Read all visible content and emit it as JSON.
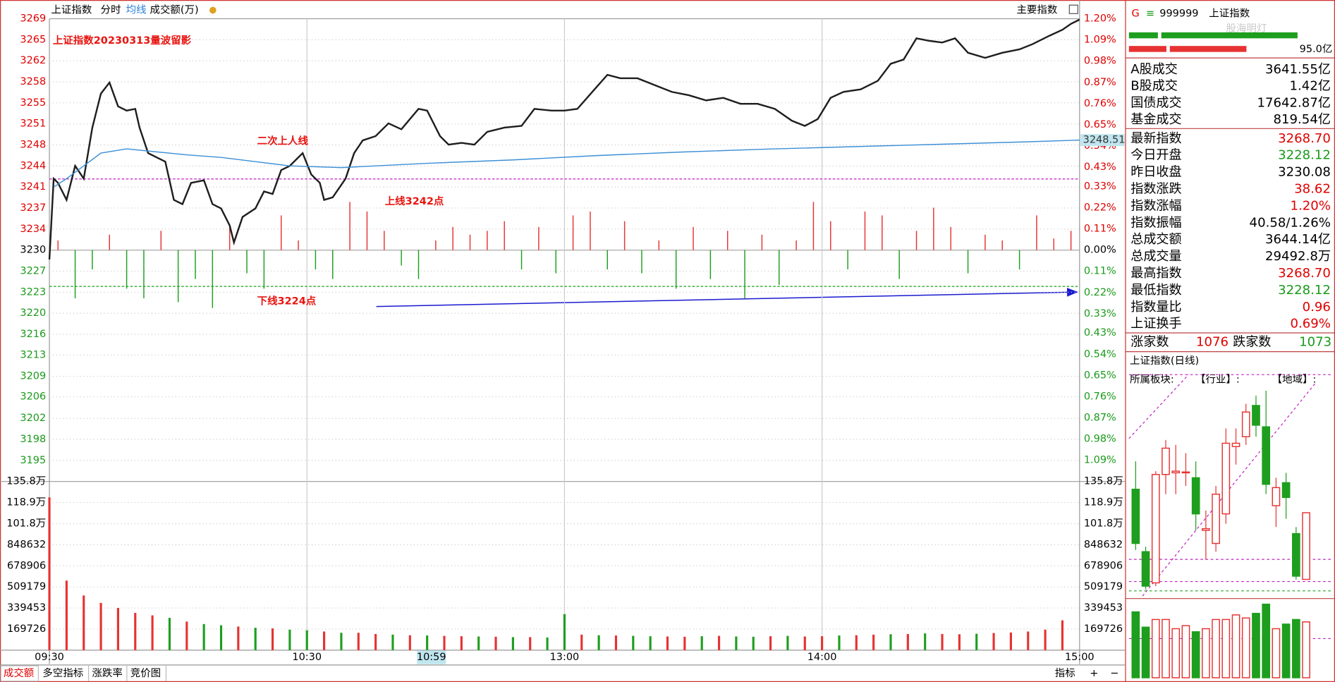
{
  "toolbar": {
    "items": [
      "上证指数",
      "分时",
      "均线",
      "成交额(万)"
    ],
    "main_index": "主要指数"
  },
  "chart_data": [
    {
      "type": "line",
      "xlim": [
        0,
        240
      ],
      "xticks": [
        {
          "value": 0,
          "label": "09:30"
        },
        {
          "value": 60,
          "label": "10:30"
        },
        {
          "value": 120,
          "label": "13:00"
        },
        {
          "value": 180,
          "label": "14:00"
        },
        {
          "value": 240,
          "label": "15:00"
        }
      ],
      "ylim": [
        3191.32,
        3268.84
      ],
      "yticks": [
        {
          "value": 3268.84,
          "label": "3269"
        },
        {
          "value": 3265.32,
          "label": "3265"
        },
        {
          "value": 3261.79,
          "label": "3262"
        },
        {
          "value": 3258.27,
          "label": "3258"
        },
        {
          "value": 3254.75,
          "label": "3255"
        },
        {
          "value": 3251.22,
          "label": "3251"
        },
        {
          "value": 3247.7,
          "label": "3248"
        },
        {
          "value": 3244.17,
          "label": "3244"
        },
        {
          "value": 3240.65,
          "label": "3241"
        },
        {
          "value": 3237.13,
          "label": "3237"
        },
        {
          "value": 3233.6,
          "label": "3234"
        },
        {
          "value": 3230.08,
          "label": "3230"
        },
        {
          "value": 3226.56,
          "label": "3227"
        },
        {
          "value": 3223.03,
          "label": "3223"
        },
        {
          "value": 3219.51,
          "label": "3220"
        },
        {
          "value": 3215.98,
          "label": "3216"
        },
        {
          "value": 3212.5,
          "label": "3213"
        },
        {
          "value": 3208.94,
          "label": "3209"
        },
        {
          "value": 3205.5,
          "label": "3206"
        },
        {
          "value": 3201.89,
          "label": "3202"
        },
        {
          "value": 3198.37,
          "label": "3198"
        },
        {
          "value": 3194.84,
          "label": "3195"
        }
      ],
      "y2lim": [
        -1.2,
        1.2
      ],
      "y2ticks": [
        {
          "value": 1.2,
          "label": "1.20%"
        },
        {
          "value": 1.09,
          "label": "1.09%"
        },
        {
          "value": 0.98,
          "label": "0.98%"
        },
        {
          "value": 0.87,
          "label": "0.87%"
        },
        {
          "value": 0.76,
          "label": "0.76%"
        },
        {
          "value": 0.65,
          "label": "0.65%"
        },
        {
          "value": 0.54,
          "label": "0.54%"
        },
        {
          "value": 0.43,
          "label": "0.43%"
        },
        {
          "value": 0.33,
          "label": "0.33%"
        },
        {
          "value": 0.22,
          "label": "0.22%"
        },
        {
          "value": 0.11,
          "label": "0.11%"
        },
        {
          "value": 0,
          "label": "0.00%"
        },
        {
          "value": -0.11,
          "label": "0.11%"
        },
        {
          "value": -0.22,
          "label": "0.22%"
        },
        {
          "value": -0.33,
          "label": "0.33%"
        },
        {
          "value": -0.43,
          "label": "0.43%"
        },
        {
          "value": -0.54,
          "label": "0.54%"
        },
        {
          "value": -0.65,
          "label": "0.65%"
        },
        {
          "value": -0.76,
          "label": "0.76%"
        },
        {
          "value": -0.87,
          "label": "0.87%"
        },
        {
          "value": -0.98,
          "label": "0.98%"
        },
        {
          "value": -1.09,
          "label": "1.09%"
        }
      ],
      "grid": true,
      "series": [
        {
          "color": "#1e1e1e",
          "x": [
            0,
            1,
            2,
            4,
            6,
            8,
            10,
            12,
            14,
            16,
            18,
            20,
            21,
            23,
            25,
            27,
            29,
            31,
            33,
            36,
            38,
            40,
            42,
            43,
            45,
            48,
            50,
            52,
            54,
            56,
            59,
            61,
            63,
            64,
            66,
            69,
            71,
            73,
            76,
            79,
            82,
            86,
            88,
            91,
            93,
            96,
            99,
            102,
            106,
            110,
            113,
            117,
            120,
            123,
            127,
            130,
            133,
            137,
            141,
            145,
            149,
            153,
            157,
            161,
            165,
            169,
            173,
            176,
            179,
            182,
            185,
            189,
            193,
            196,
            199,
            202,
            205,
            208,
            211,
            214,
            218,
            222,
            226,
            229,
            233,
            236,
            238,
            240
          ],
          "values": [
            3228.51,
            3242.05,
            3241.34,
            3238.49,
            3244.19,
            3242.05,
            3250.6,
            3256.3,
            3258.15,
            3254.16,
            3253.45,
            3253.74,
            3250.6,
            3246.33,
            3245.61,
            3244.9,
            3238.49,
            3237.78,
            3241.34,
            3241.77,
            3237.78,
            3237.06,
            3234.21,
            3231.36,
            3235.64,
            3237.06,
            3239.91,
            3239.49,
            3243.48,
            3244.19,
            3246.33,
            3242.76,
            3241.34,
            3238.49,
            3238.92,
            3242.05,
            3246.33,
            3248.46,
            3249.18,
            3251.31,
            3250.32,
            3253.74,
            3253.45,
            3249.18,
            3247.75,
            3248.04,
            3247.75,
            3249.89,
            3250.6,
            3250.89,
            3253.74,
            3253.45,
            3253.45,
            3253.74,
            3257.01,
            3259.44,
            3258.87,
            3258.87,
            3257.72,
            3256.59,
            3256.02,
            3255.16,
            3255.59,
            3254.59,
            3254.59,
            3253.74,
            3251.74,
            3250.89,
            3252.03,
            3255.59,
            3256.59,
            3257.01,
            3258.44,
            3261.29,
            3262.0,
            3265.56,
            3265.14,
            3264.85,
            3265.56,
            3263.14,
            3262.29,
            3263.14,
            3263.71,
            3264.57,
            3266.0,
            3266.99,
            3267.99,
            3268.7
          ]
        },
        {
          "color": "#3d8fd6",
          "x": [
            1,
            4,
            8,
            12,
            18,
            24,
            32,
            40,
            48,
            56,
            68,
            88,
            108,
            127,
            147,
            167,
            187,
            207,
            227,
            240
          ],
          "values": [
            3240.63,
            3242.05,
            3244.19,
            3246.33,
            3247.04,
            3246.61,
            3246.04,
            3245.61,
            3244.9,
            3244.19,
            3243.9,
            3244.62,
            3245.19,
            3245.9,
            3246.5,
            3247.0,
            3247.4,
            3247.8,
            3248.2,
            3248.51
          ]
        }
      ],
      "bars": {
        "up_color": "#e63232",
        "down_color": "#1e9e1e",
        "x": [
          2,
          6,
          10,
          14,
          18,
          22,
          26,
          30,
          34,
          38,
          42,
          46,
          50,
          54,
          58,
          62,
          66,
          70,
          74,
          78,
          82,
          86,
          90,
          94,
          98,
          102,
          106,
          110,
          114,
          118,
          122,
          126,
          130,
          134,
          138,
          142,
          146,
          150,
          154,
          158,
          162,
          166,
          170,
          174,
          178,
          182,
          186,
          190,
          194,
          198,
          202,
          206,
          210,
          214,
          218,
          222,
          226,
          230,
          234,
          238
        ],
        "values": [
          0.05,
          -0.25,
          -0.1,
          0.08,
          -0.2,
          -0.25,
          0.1,
          -0.27,
          -0.15,
          -0.3,
          0.12,
          -0.12,
          -0.2,
          0.18,
          0.05,
          -0.1,
          -0.15,
          0.25,
          0.2,
          0.1,
          -0.08,
          -0.15,
          0.05,
          0.12,
          0.08,
          0.1,
          0.15,
          -0.1,
          0.12,
          -0.12,
          0.18,
          0.2,
          -0.1,
          0.15,
          -0.12,
          0.05,
          -0.2,
          0.12,
          -0.15,
          0.1,
          -0.25,
          0.08,
          -0.18,
          0.05,
          0.25,
          0.15,
          -0.1,
          0.2,
          0.18,
          -0.15,
          0.1,
          0.22,
          0.12,
          -0.12,
          0.08,
          0.05,
          -0.1,
          0.18,
          0.06,
          0.1
        ]
      },
      "reference_lines": [
        {
          "value": 3242,
          "color": "#c020c0"
        },
        {
          "value": 3224,
          "color": "#1e9e1e"
        }
      ],
      "annotations": [
        {
          "text": "上证指数20230313量波留影",
          "color": "#e8140f"
        },
        {
          "text": "二次上人线",
          "color": "#e8140f"
        },
        {
          "text": "上线3242点",
          "color": "#e8140f"
        },
        {
          "text": "下线3224点",
          "color": "#e8140f"
        }
      ],
      "cursor": {
        "value": 89,
        "label": "10:59"
      }
    },
    {
      "type": "bar",
      "xlim": [
        0,
        240
      ],
      "ylim": [
        0,
        1357808
      ],
      "yticks": [
        {
          "value": 1357808,
          "label": "135.8万"
        },
        {
          "value": 1189000,
          "label": "118.9万"
        },
        {
          "value": 1018356,
          "label": "101.8万"
        },
        848632,
        678906,
        509179,
        339453,
        169726
      ],
      "x": [
        0,
        4,
        8,
        12,
        16,
        20,
        24,
        28,
        32,
        36,
        40,
        44,
        48,
        52,
        56,
        60,
        64,
        68,
        72,
        76,
        80,
        84,
        88,
        92,
        96,
        100,
        104,
        108,
        112,
        116,
        120,
        124,
        128,
        132,
        136,
        140,
        144,
        148,
        152,
        156,
        160,
        164,
        168,
        172,
        176,
        180,
        184,
        188,
        192,
        196,
        200,
        204,
        208,
        212,
        216,
        220,
        224,
        228,
        232,
        236
      ],
      "values": [
        1230000,
        560000,
        440000,
        380000,
        340000,
        300000,
        280000,
        260000,
        230000,
        210000,
        200000,
        190000,
        180000,
        175000,
        165000,
        160000,
        150000,
        140000,
        140000,
        130000,
        125000,
        120000,
        118000,
        115000,
        112000,
        110000,
        108000,
        105000,
        105000,
        102000,
        290000,
        125000,
        120000,
        118000,
        115000,
        112000,
        110000,
        108000,
        112000,
        115000,
        110000,
        108000,
        112000,
        115000,
        110000,
        112000,
        118000,
        120000,
        125000,
        128000,
        130000,
        135000,
        130000,
        128000,
        132000,
        138000,
        142000,
        150000,
        165000,
        240000
      ],
      "colors": [
        "#e63232",
        "#e63232",
        "#e63232",
        "#e63232",
        "#e63232",
        "#e63232",
        "#e63232",
        "#1e9e1e",
        "#e63232",
        "#1e9e1e",
        "#1e9e1e",
        "#e63232",
        "#1e9e1e",
        "#e63232",
        "#1e9e1e",
        "#1e9e1e",
        "#e63232",
        "#1e9e1e",
        "#e63232",
        "#e63232",
        "#1e9e1e",
        "#e63232",
        "#1e9e1e",
        "#e63232",
        "#e63232",
        "#1e9e1e",
        "#e63232",
        "#1e9e1e",
        "#e63232",
        "#1e9e1e",
        "#1e9e1e",
        "#e63232",
        "#1e9e1e",
        "#e63232",
        "#1e9e1e",
        "#1e9e1e",
        "#e63232",
        "#e63232",
        "#1e9e1e",
        "#e63232",
        "#1e9e1e",
        "#1e9e1e",
        "#e63232",
        "#1e9e1e",
        "#e63232",
        "#e63232",
        "#1e9e1e",
        "#e63232",
        "#e63232",
        "#1e9e1e",
        "#e63232",
        "#1e9e1e",
        "#e63232",
        "#e63232",
        "#1e9e1e",
        "#e63232",
        "#e63232",
        "#e63232",
        "#e63232",
        "#e63232"
      ]
    },
    {
      "type": "candlestick",
      "title": "上证指数(日线)",
      "sector_labels": [
        "所属板块:",
        "【行业】:",
        "【地域】:"
      ],
      "up_color": "#e63232",
      "down_color": "#1e9e1e",
      "ylim": [
        3218,
        3345
      ],
      "open": [
        3283,
        3245,
        3226,
        3292,
        3293,
        3293,
        3290,
        3258,
        3250,
        3268,
        3309,
        3315,
        3334,
        3321,
        3273,
        3287,
        3256,
        3228.12
      ],
      "high": [
        3300,
        3248,
        3294,
        3313,
        3310,
        3305,
        3300,
        3270,
        3285,
        3320,
        3320,
        3335,
        3340,
        3343,
        3290,
        3293,
        3260,
        3268.7
      ],
      "low": [
        3246,
        3222,
        3224,
        3280,
        3280,
        3285,
        3258,
        3240,
        3245,
        3262,
        3298,
        3310,
        3315,
        3280,
        3260,
        3265,
        3228,
        3228.12
      ],
      "close": [
        3250,
        3224,
        3292,
        3308,
        3294,
        3293.5,
        3268,
        3259,
        3280,
        3311,
        3311,
        3330,
        3322,
        3286,
        3284,
        3278,
        3230.08,
        3268.7
      ],
      "volume": [
        4300,
        3300,
        3800,
        3800,
        3200,
        3400,
        3000,
        3200,
        3800,
        3800,
        4100,
        3900,
        4200,
        4800,
        3200,
        3500,
        3800,
        3644.14
      ],
      "volume_ylim": [
        0,
        5000
      ]
    }
  ],
  "quote": {
    "flag": "G",
    "code": "999999",
    "name": "上证指数",
    "amount": "95.0亿",
    "watermark": "股海明灯",
    "rows": [
      {
        "label": "A股成交",
        "value": "3641.55亿",
        "color": "#000000"
      },
      {
        "label": "B股成交",
        "value": "1.42亿",
        "color": "#000000"
      },
      {
        "label": "国债成交",
        "value": "17642.87亿",
        "color": "#000000"
      },
      {
        "label": "基金成交",
        "value": "819.54亿",
        "color": "#000000"
      },
      {
        "label": "最新指数",
        "value": "3268.70",
        "color": "#e00000"
      },
      {
        "label": "今日开盘",
        "value": "3228.12",
        "color": "#1a9a1a"
      },
      {
        "label": "昨日收盘",
        "value": "3230.08",
        "color": "#000000"
      },
      {
        "label": "指数涨跌",
        "value": "38.62",
        "color": "#e00000"
      },
      {
        "label": "指数涨幅",
        "value": "1.20%",
        "color": "#e00000"
      },
      {
        "label": "指数振幅",
        "value": "40.58/1.26%",
        "color": "#000000"
      },
      {
        "label": "总成交额",
        "value": "3644.14亿",
        "color": "#000000"
      },
      {
        "label": "总成交量",
        "value": "29492.8万",
        "color": "#000000"
      },
      {
        "label": "最高指数",
        "value": "3268.70",
        "color": "#e00000"
      },
      {
        "label": "最低指数",
        "value": "3228.12",
        "color": "#1a9a1a"
      },
      {
        "label": "指数量比",
        "value": "0.96",
        "color": "#e00000"
      },
      {
        "label": "上证换手",
        "value": "0.69%",
        "color": "#e00000"
      }
    ],
    "advance_label": "涨家数",
    "advance": "1076",
    "decline_label": "跌家数",
    "decline": "1073"
  },
  "tabs": [
    "成交额",
    "多空指标",
    "涨跌率",
    "竞价图"
  ],
  "tools": [
    "指标",
    "+",
    "−"
  ]
}
